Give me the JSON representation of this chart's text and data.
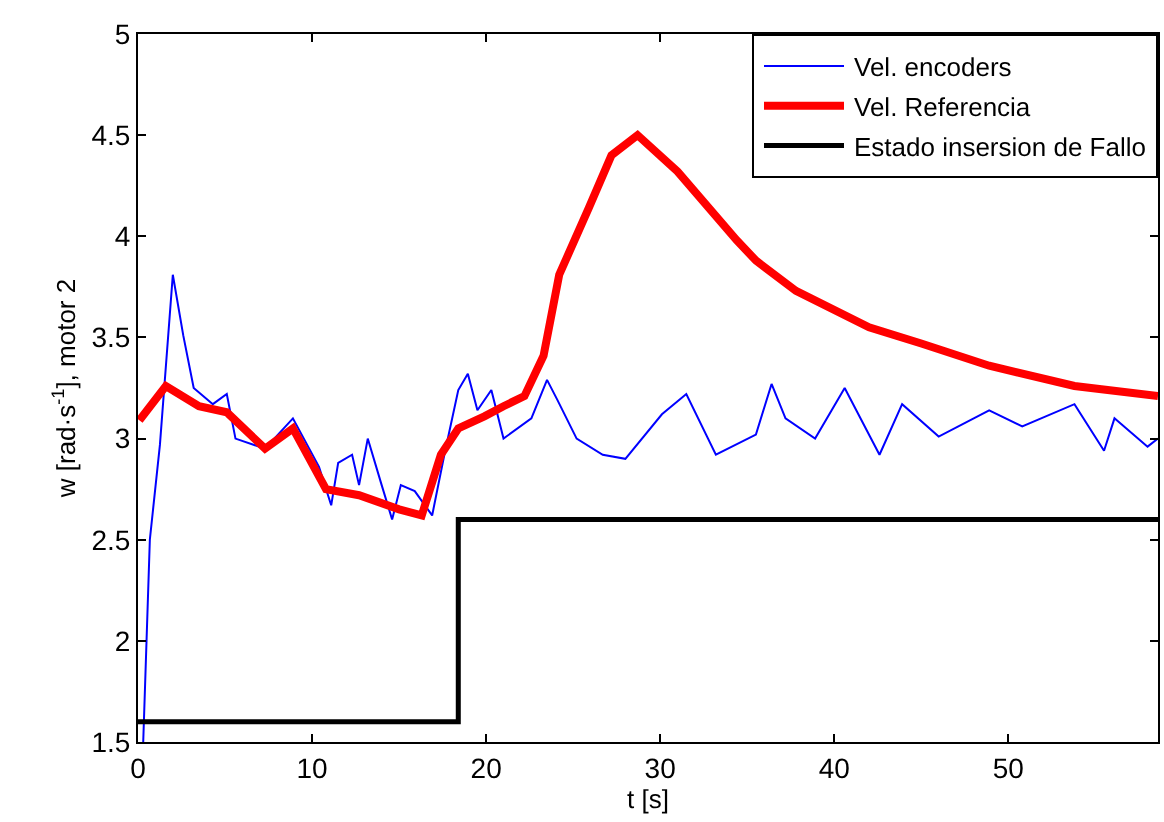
{
  "chart_data": {
    "type": "line",
    "xlabel": "t [s]",
    "ylabel": "w [rad·s$^{-1}$], motor 2",
    "xlim": [
      0,
      58.6
    ],
    "xticks": [
      0,
      10,
      20,
      30,
      40,
      50
    ],
    "ylim": [
      1.5,
      5
    ],
    "yticks": [
      1.5,
      2,
      2.5,
      3,
      3.5,
      4,
      4.5,
      5
    ],
    "legend": "top right",
    "marker": "none",
    "line_style": "solid",
    "series": [
      {
        "name": "Vel. encoders",
        "color": "#0000ff",
        "x": [
          0.3,
          0.68,
          1.26,
          2.0,
          2.6,
          3.2,
          4.3,
          5.1,
          5.6,
          7.3,
          8.9,
          10.4,
          11.1,
          11.5,
          12.3,
          12.7,
          13.2,
          14.0,
          14.6,
          15.1,
          15.9,
          16.9,
          17.6,
          18.4,
          18.95,
          19.5,
          20.3,
          21.0,
          22.6,
          23.5,
          24.1,
          25.2,
          26.7,
          28.0,
          30.1,
          31.5,
          33.2,
          35.5,
          36.4,
          37.2,
          38.9,
          40.6,
          42.6,
          43.9,
          46.0,
          48.9,
          50.8,
          53.8,
          55.5,
          56.1,
          58.0,
          58.6
        ],
        "values": [
          1.5,
          2.5,
          2.97,
          3.81,
          3.51,
          3.25,
          3.17,
          3.22,
          3.0,
          2.95,
          3.1,
          2.86,
          2.67,
          2.88,
          2.92,
          2.77,
          3.0,
          2.77,
          2.6,
          2.77,
          2.74,
          2.62,
          2.92,
          3.24,
          3.32,
          3.14,
          3.24,
          3.0,
          3.1,
          3.29,
          3.19,
          3.0,
          2.92,
          2.9,
          3.12,
          3.22,
          2.92,
          3.02,
          3.27,
          3.1,
          3.0,
          3.25,
          2.92,
          3.17,
          3.01,
          3.14,
          3.06,
          3.17,
          2.94,
          3.1,
          2.96,
          3.0
        ]
      },
      {
        "name": "Vel. Referencia",
        "color": "#ff0000",
        "x": [
          0.08,
          1.6,
          3.5,
          5.1,
          7.3,
          8.9,
          10.8,
          12.7,
          15.0,
          16.3,
          17.4,
          18.4,
          19.9,
          21.0,
          22.2,
          23.3,
          24.2,
          25.9,
          27.2,
          28.7,
          31.0,
          34.4,
          35.5,
          37.8,
          42.0,
          45.0,
          48.9,
          53.8,
          58.6
        ],
        "values": [
          3.09,
          3.26,
          3.16,
          3.13,
          2.95,
          3.05,
          2.75,
          2.72,
          2.65,
          2.62,
          2.92,
          3.05,
          3.11,
          3.16,
          3.21,
          3.41,
          3.81,
          4.14,
          4.4,
          4.5,
          4.32,
          3.98,
          3.88,
          3.73,
          3.55,
          3.47,
          3.36,
          3.26,
          3.21
        ]
      },
      {
        "name": "Estado insersion de Fallo",
        "color": "#000000",
        "type": "step",
        "x": [
          0,
          18.4,
          58.6
        ],
        "values": [
          1.6,
          2.6,
          2.6
        ]
      }
    ]
  }
}
